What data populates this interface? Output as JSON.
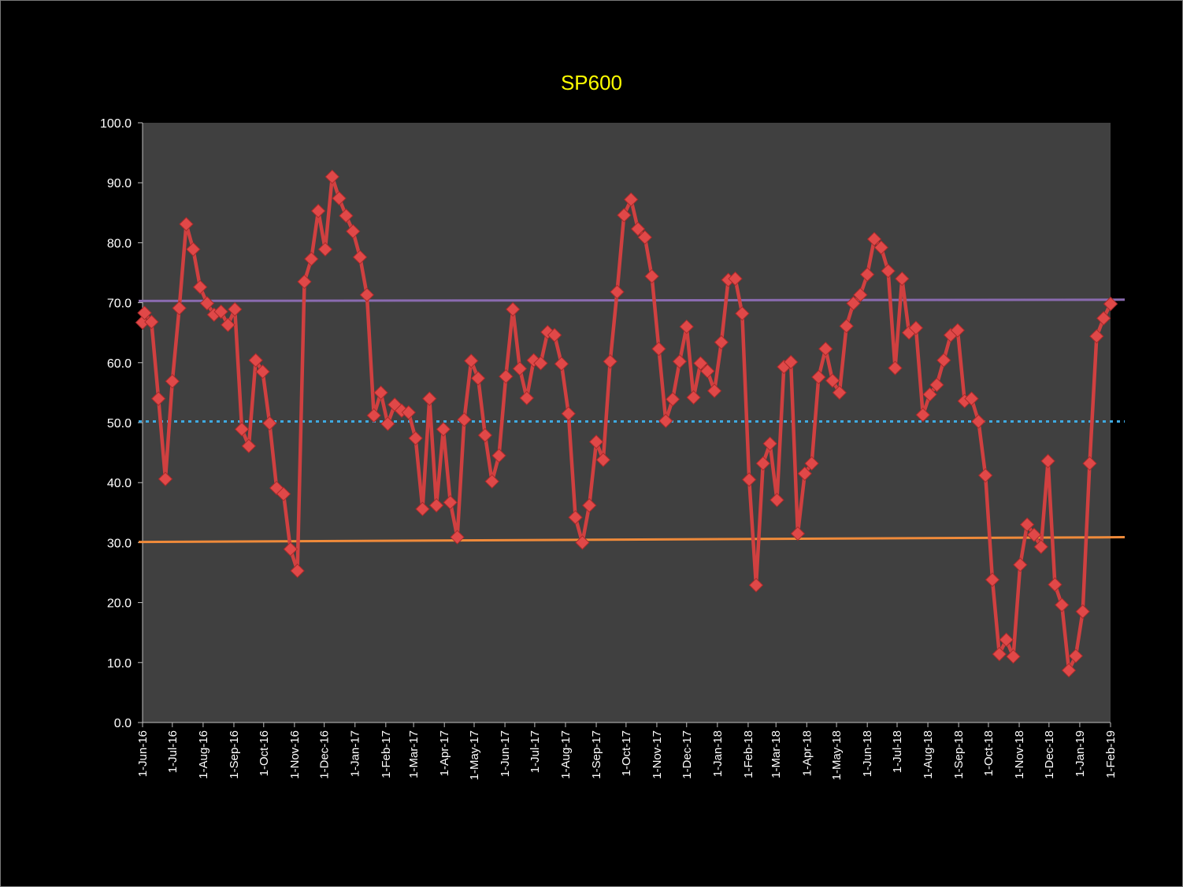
{
  "chart_data": {
    "type": "line",
    "title": "SP600",
    "xlabel": "",
    "ylabel": "",
    "ylim": [
      0,
      100
    ],
    "yticks": [
      "0.0",
      "10.0",
      "20.0",
      "30.0",
      "40.0",
      "50.0",
      "60.0",
      "70.0",
      "80.0",
      "90.0",
      "100.0"
    ],
    "xlim": [
      "2016-06-01",
      "2019-02-01"
    ],
    "xtick_labels": [
      "1-Jun-16",
      "1-Jul-16",
      "1-Aug-16",
      "1-Sep-16",
      "1-Oct-16",
      "1-Nov-16",
      "1-Dec-16",
      "1-Jan-17",
      "1-Feb-17",
      "1-Mar-17",
      "1-Apr-17",
      "1-May-17",
      "1-Jun-17",
      "1-Jul-17",
      "1-Aug-17",
      "1-Sep-17",
      "1-Oct-17",
      "1-Nov-17",
      "1-Dec-17",
      "1-Jan-18",
      "1-Feb-18",
      "1-Mar-18",
      "1-Apr-18",
      "1-May-18",
      "1-Jun-18",
      "1-Jul-18",
      "1-Aug-18",
      "1-Sep-18",
      "1-Oct-18",
      "1-Nov-18",
      "1-Dec-18",
      "1-Jan-19",
      "1-Feb-19"
    ],
    "grid": false,
    "colors": {
      "background": "#000000",
      "plot_area": "#404040",
      "series": "#d04040",
      "marker": "#e04848",
      "upper_line": "#8a6bb0",
      "mid_line": "#3fa9e0",
      "lower_line": "#ef8a3a",
      "title": "#ffff00",
      "text": "#ffffff"
    },
    "series": [
      {
        "values": [
          [
            "2016-06-01",
            66.7
          ],
          [
            "2016-06-03",
            68.3
          ],
          [
            "2016-06-10",
            66.8
          ],
          [
            "2016-06-17",
            54.0
          ],
          [
            "2016-06-24",
            40.6
          ],
          [
            "2016-07-01",
            56.9
          ],
          [
            "2016-07-08",
            69.1
          ],
          [
            "2016-07-15",
            83.1
          ],
          [
            "2016-07-22",
            78.9
          ],
          [
            "2016-07-29",
            72.6
          ],
          [
            "2016-08-05",
            69.9
          ],
          [
            "2016-08-12",
            68.0
          ],
          [
            "2016-08-19",
            68.5
          ],
          [
            "2016-08-26",
            66.3
          ],
          [
            "2016-09-02",
            68.9
          ],
          [
            "2016-09-09",
            48.9
          ],
          [
            "2016-09-16",
            46.1
          ],
          [
            "2016-09-23",
            60.4
          ],
          [
            "2016-09-30",
            58.5
          ],
          [
            "2016-10-07",
            49.9
          ],
          [
            "2016-10-14",
            39.1
          ],
          [
            "2016-10-21",
            38.1
          ],
          [
            "2016-10-28",
            28.9
          ],
          [
            "2016-11-04",
            25.3
          ],
          [
            "2016-11-11",
            73.5
          ],
          [
            "2016-11-18",
            77.3
          ],
          [
            "2016-11-25",
            85.3
          ],
          [
            "2016-12-02",
            78.9
          ],
          [
            "2016-12-09",
            91.0
          ],
          [
            "2016-12-16",
            87.4
          ],
          [
            "2016-12-23",
            84.5
          ],
          [
            "2016-12-30",
            81.9
          ],
          [
            "2017-01-06",
            77.6
          ],
          [
            "2017-01-13",
            71.3
          ],
          [
            "2017-01-20",
            51.2
          ],
          [
            "2017-01-27",
            55.0
          ],
          [
            "2017-02-03",
            49.8
          ],
          [
            "2017-02-10",
            53.0
          ],
          [
            "2017-02-17",
            52.0
          ],
          [
            "2017-02-24",
            51.7
          ],
          [
            "2017-03-03",
            47.4
          ],
          [
            "2017-03-10",
            35.6
          ],
          [
            "2017-03-17",
            54.0
          ],
          [
            "2017-03-24",
            36.2
          ],
          [
            "2017-03-31",
            48.9
          ],
          [
            "2017-04-07",
            36.7
          ],
          [
            "2017-04-14",
            30.9
          ],
          [
            "2017-04-21",
            50.5
          ],
          [
            "2017-04-28",
            60.3
          ],
          [
            "2017-05-05",
            57.4
          ],
          [
            "2017-05-12",
            47.9
          ],
          [
            "2017-05-19",
            40.2
          ],
          [
            "2017-05-26",
            44.5
          ],
          [
            "2017-06-02",
            57.7
          ],
          [
            "2017-06-09",
            68.9
          ],
          [
            "2017-06-16",
            59.0
          ],
          [
            "2017-06-23",
            54.1
          ],
          [
            "2017-06-30",
            60.4
          ],
          [
            "2017-07-07",
            59.9
          ],
          [
            "2017-07-14",
            65.1
          ],
          [
            "2017-07-21",
            64.6
          ],
          [
            "2017-07-28",
            59.8
          ],
          [
            "2017-08-04",
            51.5
          ],
          [
            "2017-08-11",
            34.2
          ],
          [
            "2017-08-18",
            30.0
          ],
          [
            "2017-08-25",
            36.2
          ],
          [
            "2017-09-01",
            46.8
          ],
          [
            "2017-09-08",
            43.8
          ],
          [
            "2017-09-15",
            60.2
          ],
          [
            "2017-09-22",
            71.8
          ],
          [
            "2017-09-29",
            84.6
          ],
          [
            "2017-10-06",
            87.2
          ],
          [
            "2017-10-13",
            82.3
          ],
          [
            "2017-10-20",
            80.9
          ],
          [
            "2017-10-27",
            74.4
          ],
          [
            "2017-11-03",
            62.3
          ],
          [
            "2017-11-10",
            50.3
          ],
          [
            "2017-11-17",
            53.9
          ],
          [
            "2017-11-24",
            60.2
          ],
          [
            "2017-12-01",
            66.0
          ],
          [
            "2017-12-08",
            54.2
          ],
          [
            "2017-12-15",
            59.9
          ],
          [
            "2017-12-22",
            58.6
          ],
          [
            "2017-12-29",
            55.3
          ],
          [
            "2018-01-05",
            63.4
          ],
          [
            "2018-01-12",
            73.8
          ],
          [
            "2018-01-19",
            74.0
          ],
          [
            "2018-01-26",
            68.2
          ],
          [
            "2018-02-02",
            40.5
          ],
          [
            "2018-02-09",
            22.9
          ],
          [
            "2018-02-16",
            43.2
          ],
          [
            "2018-02-23",
            46.5
          ],
          [
            "2018-03-02",
            37.1
          ],
          [
            "2018-03-09",
            59.3
          ],
          [
            "2018-03-16",
            60.1
          ],
          [
            "2018-03-23",
            31.5
          ],
          [
            "2018-03-30",
            41.5
          ],
          [
            "2018-04-06",
            43.2
          ],
          [
            "2018-04-13",
            57.6
          ],
          [
            "2018-04-20",
            62.3
          ],
          [
            "2018-04-27",
            57.0
          ],
          [
            "2018-05-04",
            55.0
          ],
          [
            "2018-05-11",
            66.1
          ],
          [
            "2018-05-18",
            69.9
          ],
          [
            "2018-05-25",
            71.3
          ],
          [
            "2018-06-01",
            74.7
          ],
          [
            "2018-06-08",
            80.6
          ],
          [
            "2018-06-15",
            79.2
          ],
          [
            "2018-06-22",
            75.3
          ],
          [
            "2018-06-29",
            59.1
          ],
          [
            "2018-07-06",
            74.0
          ],
          [
            "2018-07-13",
            65.0
          ],
          [
            "2018-07-20",
            65.8
          ],
          [
            "2018-07-27",
            51.3
          ],
          [
            "2018-08-03",
            54.7
          ],
          [
            "2018-08-10",
            56.3
          ],
          [
            "2018-08-17",
            60.4
          ],
          [
            "2018-08-24",
            64.6
          ],
          [
            "2018-08-31",
            65.4
          ],
          [
            "2018-09-07",
            53.6
          ],
          [
            "2018-09-14",
            54.0
          ],
          [
            "2018-09-21",
            50.2
          ],
          [
            "2018-09-28",
            41.2
          ],
          [
            "2018-10-05",
            23.8
          ],
          [
            "2018-10-12",
            11.4
          ],
          [
            "2018-10-19",
            13.8
          ],
          [
            "2018-10-26",
            11.0
          ],
          [
            "2018-11-02",
            26.3
          ],
          [
            "2018-11-09",
            33.0
          ],
          [
            "2018-11-16",
            31.3
          ],
          [
            "2018-11-23",
            29.3
          ],
          [
            "2018-11-30",
            43.6
          ],
          [
            "2018-12-07",
            23.0
          ],
          [
            "2018-12-14",
            19.6
          ],
          [
            "2018-12-21",
            8.7
          ],
          [
            "2018-12-28",
            11.1
          ],
          [
            "2019-01-04",
            18.5
          ],
          [
            "2019-01-11",
            43.2
          ],
          [
            "2019-01-18",
            64.4
          ],
          [
            "2019-01-25",
            67.4
          ],
          [
            "2019-02-01",
            69.8
          ]
        ]
      }
    ],
    "reference_lines": [
      {
        "y_start": 70.3,
        "y_end": 70.5
      },
      {
        "y_start": 50.2,
        "y_end": 50.2
      },
      {
        "y_start": 30.1,
        "y_end": 30.9
      }
    ]
  }
}
